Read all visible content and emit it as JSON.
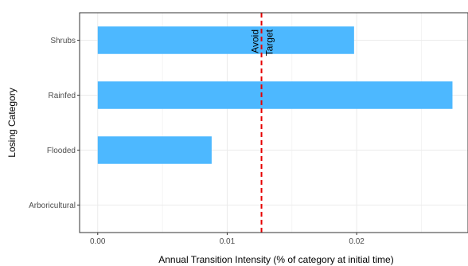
{
  "chart_data": {
    "type": "bar",
    "orientation": "horizontal",
    "categories": [
      "Arboricultural",
      "Flooded",
      "Rainfed",
      "Shrubs"
    ],
    "values": [
      0.0,
      0.0088,
      0.0274,
      0.0198
    ],
    "xlabel": "Annual Transition Intensity (% of category at initial time)",
    "ylabel": "Losing Category",
    "xlim": [
      -0.0014,
      0.0286
    ],
    "xticks": [
      "0.00",
      "0.01",
      "0.02"
    ],
    "xtick_values": [
      0.0,
      0.01,
      0.02
    ],
    "grid": true,
    "bar_color": "#4DB8FF",
    "reference_line": {
      "value": 0.01265,
      "color": "#E60000",
      "style": "dashed",
      "labels": [
        "Avoid",
        "Target"
      ]
    }
  }
}
